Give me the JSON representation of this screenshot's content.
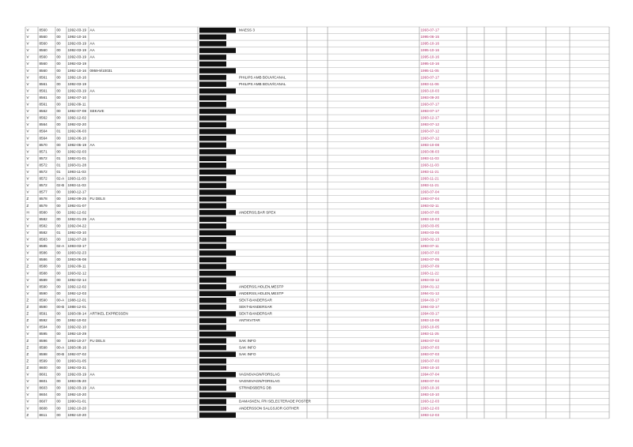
{
  "table": {
    "rows": [
      [
        "V",
        "8560",
        "00",
        "1992-03-19",
        "AA",
        "MAESS 3",
        "1993-07-17"
      ],
      [
        "V",
        "8560",
        "00",
        "1992-10-16",
        "",
        "",
        "1995-06-15"
      ],
      [
        "V",
        "8560",
        "00",
        "1992-03-19",
        "AA",
        "",
        "1995-10-16"
      ],
      [
        "V",
        "8560",
        "00",
        "1992-03-19",
        "AA",
        "",
        "1995-10-16"
      ],
      [
        "V",
        "8560",
        "00",
        "1992-03-19",
        "AA",
        "",
        "1995-10-16"
      ],
      [
        "V",
        "8560",
        "00",
        "1992-03-19",
        "",
        "",
        "1995-10-16"
      ],
      [
        "V",
        "8560",
        "00",
        "1992-10-16",
        "0959-9/10031",
        "",
        "1995-11-05"
      ],
      [
        "V",
        "8561",
        "00",
        "1992-10-16",
        "",
        "PHILIPS AMB BOUV/CANAL",
        "1993-07-17"
      ],
      [
        "V",
        "8561",
        "00",
        "1992-03-19",
        "",
        "PHILIPS AMB BOUV/CANAL",
        "1993-11-06"
      ],
      [
        "V",
        "8561",
        "00",
        "1992-03-19",
        "AA",
        "",
        "1993-10-03"
      ],
      [
        "V",
        "8561",
        "00",
        "1992-07-10",
        "",
        "",
        "1993-09-20"
      ],
      [
        "V",
        "8561",
        "00",
        "1992-09-11",
        "",
        "",
        "1993-07-17"
      ],
      [
        "V",
        "8562",
        "00",
        "1992-07-08",
        "SEKAVE",
        "",
        "1993-07-17"
      ],
      [
        "V",
        "8562",
        "00",
        "1992-12-02",
        "",
        "",
        "1993-12-17"
      ],
      [
        "V",
        "8564",
        "00",
        "1992-02-20",
        "",
        "",
        "1993-07-12"
      ],
      [
        "V",
        "8564",
        "01",
        "1992-06-03",
        "",
        "",
        "1993-07-12"
      ],
      [
        "V",
        "8564",
        "00",
        "1992-06-10",
        "",
        "",
        "1993-07-12"
      ],
      [
        "V",
        "8570",
        "00",
        "1992-05-19",
        "AA",
        "",
        "1993-10-08"
      ],
      [
        "V",
        "8571",
        "00",
        "1992-02-03",
        "",
        "",
        "1993-08-03"
      ],
      [
        "V",
        "8572",
        "01",
        "1992-01-01",
        "",
        "",
        "1993-11-03"
      ],
      [
        "V",
        "8572",
        "01",
        "1993-01-28",
        "",
        "",
        "1993-11-03"
      ],
      [
        "V",
        "8572",
        "01",
        "1993-11-03",
        "",
        "",
        "1993-11-21"
      ],
      [
        "V",
        "8572",
        "02-A",
        "1993-11-03",
        "",
        "",
        "1993-11-21"
      ],
      [
        "V",
        "8572",
        "02-B",
        "1993-11-03",
        "",
        "",
        "1993-11-21"
      ],
      [
        "V",
        "8577",
        "00",
        "1990-12-17",
        "",
        "",
        "1993-07-04"
      ],
      [
        "Z",
        "8578",
        "00",
        "1992-09-25",
        "FU DELS",
        "",
        "1993-07-04"
      ],
      [
        "Z",
        "8579",
        "00",
        "1992-01-07",
        "",
        "",
        "1993-02-11"
      ],
      [
        "H",
        "8580",
        "00",
        "1992-12-02",
        "",
        "ANDERSS,BAR SPEX",
        "1993-07-05"
      ],
      [
        "V",
        "8582",
        "00",
        "1992-01-29",
        "AA",
        "",
        "1993-10-03"
      ],
      [
        "V",
        "8582",
        "00",
        "1992-04-22",
        "",
        "",
        "1993-03-05"
      ],
      [
        "V",
        "8582",
        "01",
        "1992-03-10",
        "",
        "",
        "1993-03-05"
      ],
      [
        "V",
        "8583",
        "00",
        "1992-07-28",
        "",
        "",
        "1993-02-13"
      ],
      [
        "V",
        "8585",
        "02-A",
        "1993-03-17",
        "",
        "",
        "1993-07-11"
      ],
      [
        "V",
        "8586",
        "00",
        "1993-02-23",
        "",
        "",
        "1993-07-03"
      ],
      [
        "V",
        "8586",
        "00",
        "1993-06-08",
        "",
        "",
        "1993-07-05"
      ],
      [
        "Z",
        "8588",
        "00",
        "1992-09-11",
        "",
        "",
        "1993-07-09"
      ],
      [
        "V",
        "8588",
        "00",
        "1993-02-12",
        "",
        "",
        "1993-11-22"
      ],
      [
        "V",
        "8589",
        "00",
        "1992-02-14",
        "",
        "",
        "1993-03-12"
      ],
      [
        "V",
        "8590",
        "00",
        "1992-12-02",
        "",
        "ANDERSS,HOLEN,MESTP",
        "1994-01-12"
      ],
      [
        "V",
        "8590",
        "00",
        "1992-12-03",
        "",
        "ANDERSS,HOLEN,MESTP",
        "1994-01-12"
      ],
      [
        "Z",
        "8590",
        "00-A",
        "1988-12-01",
        "",
        "SEKT-BANDERSAR",
        "1994-03-17"
      ],
      [
        "Z",
        "8590",
        "00-B",
        "1988-12-01",
        "",
        "SEKT-BANDERSAR",
        "1994-03-17"
      ],
      [
        "Z",
        "8591",
        "00",
        "1993-09-14",
        "ARTIKEL EXPRESSEN",
        "SEKT-BANDERSAR",
        "1994-03-17"
      ],
      [
        "Z",
        "8592",
        "00",
        "1992-10-02",
        "",
        "ANTIKVITAR",
        "1993-10-08"
      ],
      [
        "V",
        "8594",
        "00",
        "1992-02-10",
        "",
        "",
        "1993-10-05"
      ],
      [
        "V",
        "8595",
        "00",
        "1992-10-29",
        "",
        "",
        "1993-11-25"
      ],
      [
        "Z",
        "8596",
        "00",
        "1993-10-27",
        "FU DELS",
        "SAK INFO",
        "1993-07-03"
      ],
      [
        "Z",
        "8598",
        "00-A",
        "1993-08-16",
        "",
        "SAK INFO",
        "1993-07-03"
      ],
      [
        "Z",
        "8598",
        "00-B",
        "1992-07-02",
        "",
        "SAK INFO",
        "1993-07-03"
      ],
      [
        "Z",
        "8599",
        "00",
        "1993-01-05",
        "",
        "",
        "1993-07-03"
      ],
      [
        "Z",
        "8600",
        "00",
        "1992-03-31",
        "",
        "",
        "1993-10-10"
      ],
      [
        "V",
        "8601",
        "00",
        "1992-03-19",
        "AA",
        "VAGNSVAGN/FORSLAG",
        "1994-07-04"
      ],
      [
        "V",
        "8601",
        "00",
        "1993-05-20",
        "",
        "VAGNSVAGN/FORSLAG",
        "1993-07-04"
      ],
      [
        "V",
        "8603",
        "00",
        "1992-03-19",
        "AA",
        "STRINDSBERG DB",
        "1993-10-16"
      ],
      [
        "V",
        "8604",
        "00",
        "1992-10-20",
        "",
        "",
        "1993-10-10"
      ],
      [
        "V",
        "8607",
        "00",
        "1990-01-01",
        "",
        "DAMASKEN, FRI SELECTERADE POSTER",
        "1993-12-03"
      ],
      [
        "V",
        "8608",
        "00",
        "1992-10-20",
        "",
        "ANDERSSON SALGSJOR GOTHER",
        "1993-12-03"
      ],
      [
        "Z",
        "8611",
        "00",
        "1992-10-20",
        "",
        "",
        "1993-12-03"
      ]
    ]
  }
}
